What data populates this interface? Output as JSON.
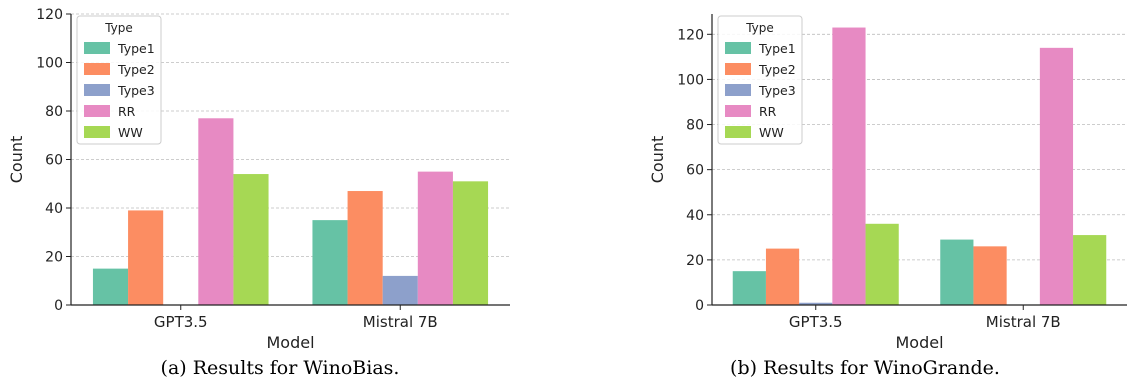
{
  "chart_data": [
    {
      "type": "bar",
      "caption": "(a) Results for WinoBias.",
      "xlabel": "Model",
      "ylabel": "Count",
      "categories": [
        "GPT3.5",
        "Mistral 7B"
      ],
      "ylim": [
        0,
        120
      ],
      "yticks": [
        0,
        20,
        40,
        60,
        80,
        100,
        120
      ],
      "grid": true,
      "legend": {
        "title": "Type",
        "position": "top-left"
      },
      "series": [
        {
          "name": "Type1",
          "color": "#66c2a5",
          "values": [
            15,
            35
          ]
        },
        {
          "name": "Type2",
          "color": "#fc8d62",
          "values": [
            39,
            47
          ]
        },
        {
          "name": "Type3",
          "color": "#8da0cb",
          "values": [
            0,
            12
          ]
        },
        {
          "name": "RR",
          "color": "#e78ac3",
          "values": [
            77,
            55
          ]
        },
        {
          "name": "WW",
          "color": "#a6d854",
          "values": [
            54,
            51
          ]
        }
      ]
    },
    {
      "type": "bar",
      "caption": "(b) Results for WinoGrande.",
      "xlabel": "Model",
      "ylabel": "Count",
      "categories": [
        "GPT3.5",
        "Mistral 7B"
      ],
      "ylim": [
        0,
        129
      ],
      "yticks": [
        0,
        20,
        40,
        60,
        80,
        100,
        120
      ],
      "grid": true,
      "legend": {
        "title": "Type",
        "position": "top-left"
      },
      "series": [
        {
          "name": "Type1",
          "color": "#66c2a5",
          "values": [
            15,
            29
          ]
        },
        {
          "name": "Type2",
          "color": "#fc8d62",
          "values": [
            25,
            26
          ]
        },
        {
          "name": "Type3",
          "color": "#8da0cb",
          "values": [
            1,
            0
          ]
        },
        {
          "name": "RR",
          "color": "#e78ac3",
          "values": [
            123,
            114
          ]
        },
        {
          "name": "WW",
          "color": "#a6d854",
          "values": [
            36,
            31
          ]
        }
      ]
    }
  ]
}
